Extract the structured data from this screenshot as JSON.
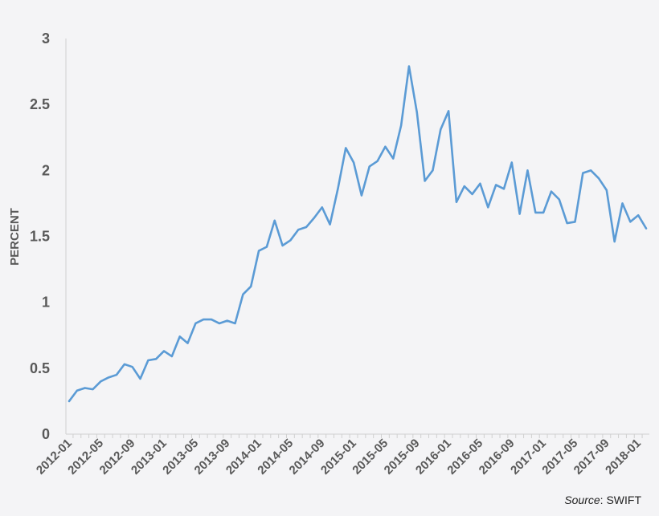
{
  "chart_data": {
    "type": "line",
    "title": "",
    "xlabel": "",
    "ylabel": "PERCENT",
    "ylim": [
      0,
      3
    ],
    "yticks": [
      "0",
      "0.5",
      "1",
      "1.5",
      "2",
      "2.5",
      "3"
    ],
    "x_tick_labels": [
      "2012-01",
      "2012-05",
      "2012-09",
      "2013-01",
      "2013-05",
      "2013-09",
      "2014-01",
      "2014-05",
      "2014-09",
      "2015-01",
      "2015-05",
      "2015-09",
      "2016-01",
      "2016-05",
      "2016-09",
      "2017-01",
      "2017-05",
      "2017-09",
      "2018-01"
    ],
    "grid": false,
    "line_color": "#5b9bd5",
    "series": [
      {
        "x": [
          "2012-01",
          "2012-02",
          "2012-03",
          "2012-04",
          "2012-05",
          "2012-06",
          "2012-07",
          "2012-08",
          "2012-09",
          "2012-10",
          "2012-11",
          "2012-12",
          "2013-01",
          "2013-02",
          "2013-03",
          "2013-04",
          "2013-05",
          "2013-06",
          "2013-07",
          "2013-08",
          "2013-09",
          "2013-10",
          "2013-11",
          "2013-12",
          "2014-01",
          "2014-02",
          "2014-03",
          "2014-04",
          "2014-05",
          "2014-06",
          "2014-07",
          "2014-08",
          "2014-09",
          "2014-10",
          "2014-11",
          "2014-12",
          "2015-01",
          "2015-02",
          "2015-03",
          "2015-04",
          "2015-05",
          "2015-06",
          "2015-07",
          "2015-08",
          "2015-09",
          "2015-10",
          "2015-11",
          "2015-12",
          "2016-01",
          "2016-02",
          "2016-03",
          "2016-04",
          "2016-05",
          "2016-06",
          "2016-07",
          "2016-08",
          "2016-09",
          "2016-10",
          "2016-11",
          "2016-12",
          "2017-01",
          "2017-02",
          "2017-03",
          "2017-04",
          "2017-05",
          "2017-06",
          "2017-07",
          "2017-08",
          "2017-09",
          "2017-10",
          "2017-11",
          "2017-12",
          "2018-01",
          "2018-02"
        ],
        "values": [
          0.25,
          0.33,
          0.35,
          0.34,
          0.4,
          0.43,
          0.45,
          0.53,
          0.51,
          0.42,
          0.56,
          0.57,
          0.63,
          0.59,
          0.74,
          0.69,
          0.84,
          0.87,
          0.87,
          0.84,
          0.86,
          0.84,
          1.06,
          1.12,
          1.39,
          1.42,
          1.62,
          1.43,
          1.47,
          1.55,
          1.57,
          1.64,
          1.72,
          1.59,
          1.86,
          2.17,
          2.06,
          1.81,
          2.03,
          2.07,
          2.18,
          2.09,
          2.34,
          2.79,
          2.44,
          1.92,
          2.0,
          2.31,
          2.45,
          1.76,
          1.88,
          1.82,
          1.9,
          1.72,
          1.89,
          1.86,
          2.06,
          1.67,
          2.0,
          1.68,
          1.68,
          1.84,
          1.78,
          1.6,
          1.61,
          1.98,
          2.0,
          1.94,
          1.85,
          1.46,
          1.75,
          1.61,
          1.66,
          1.56
        ]
      }
    ]
  },
  "source": {
    "prefix": "Source",
    "suffix": ": SWIFT"
  }
}
